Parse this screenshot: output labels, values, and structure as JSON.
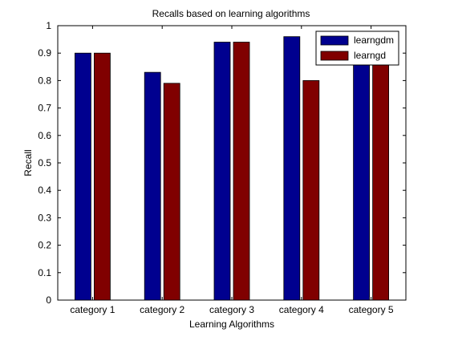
{
  "chart_data": {
    "type": "bar",
    "title": "Recalls based on learning algorithms",
    "xlabel": "Learning Algorithms",
    "ylabel": "Recall",
    "categories": [
      "category 1",
      "category 2",
      "category 3",
      "category 4",
      "category 5"
    ],
    "series": [
      {
        "name": "learngdm",
        "values": [
          0.9,
          0.83,
          0.94,
          0.96,
          0.92
        ],
        "color": "#00008f"
      },
      {
        "name": "learngd",
        "values": [
          0.9,
          0.79,
          0.94,
          0.8,
          0.92
        ],
        "color": "#800000"
      }
    ],
    "ylim": [
      0,
      1
    ],
    "y_ticks": [
      "0",
      "0.1",
      "0.2",
      "0.3",
      "0.4",
      "0.5",
      "0.6",
      "0.7",
      "0.8",
      "0.9",
      "1"
    ],
    "grid": false,
    "legend_position": "top-right"
  }
}
